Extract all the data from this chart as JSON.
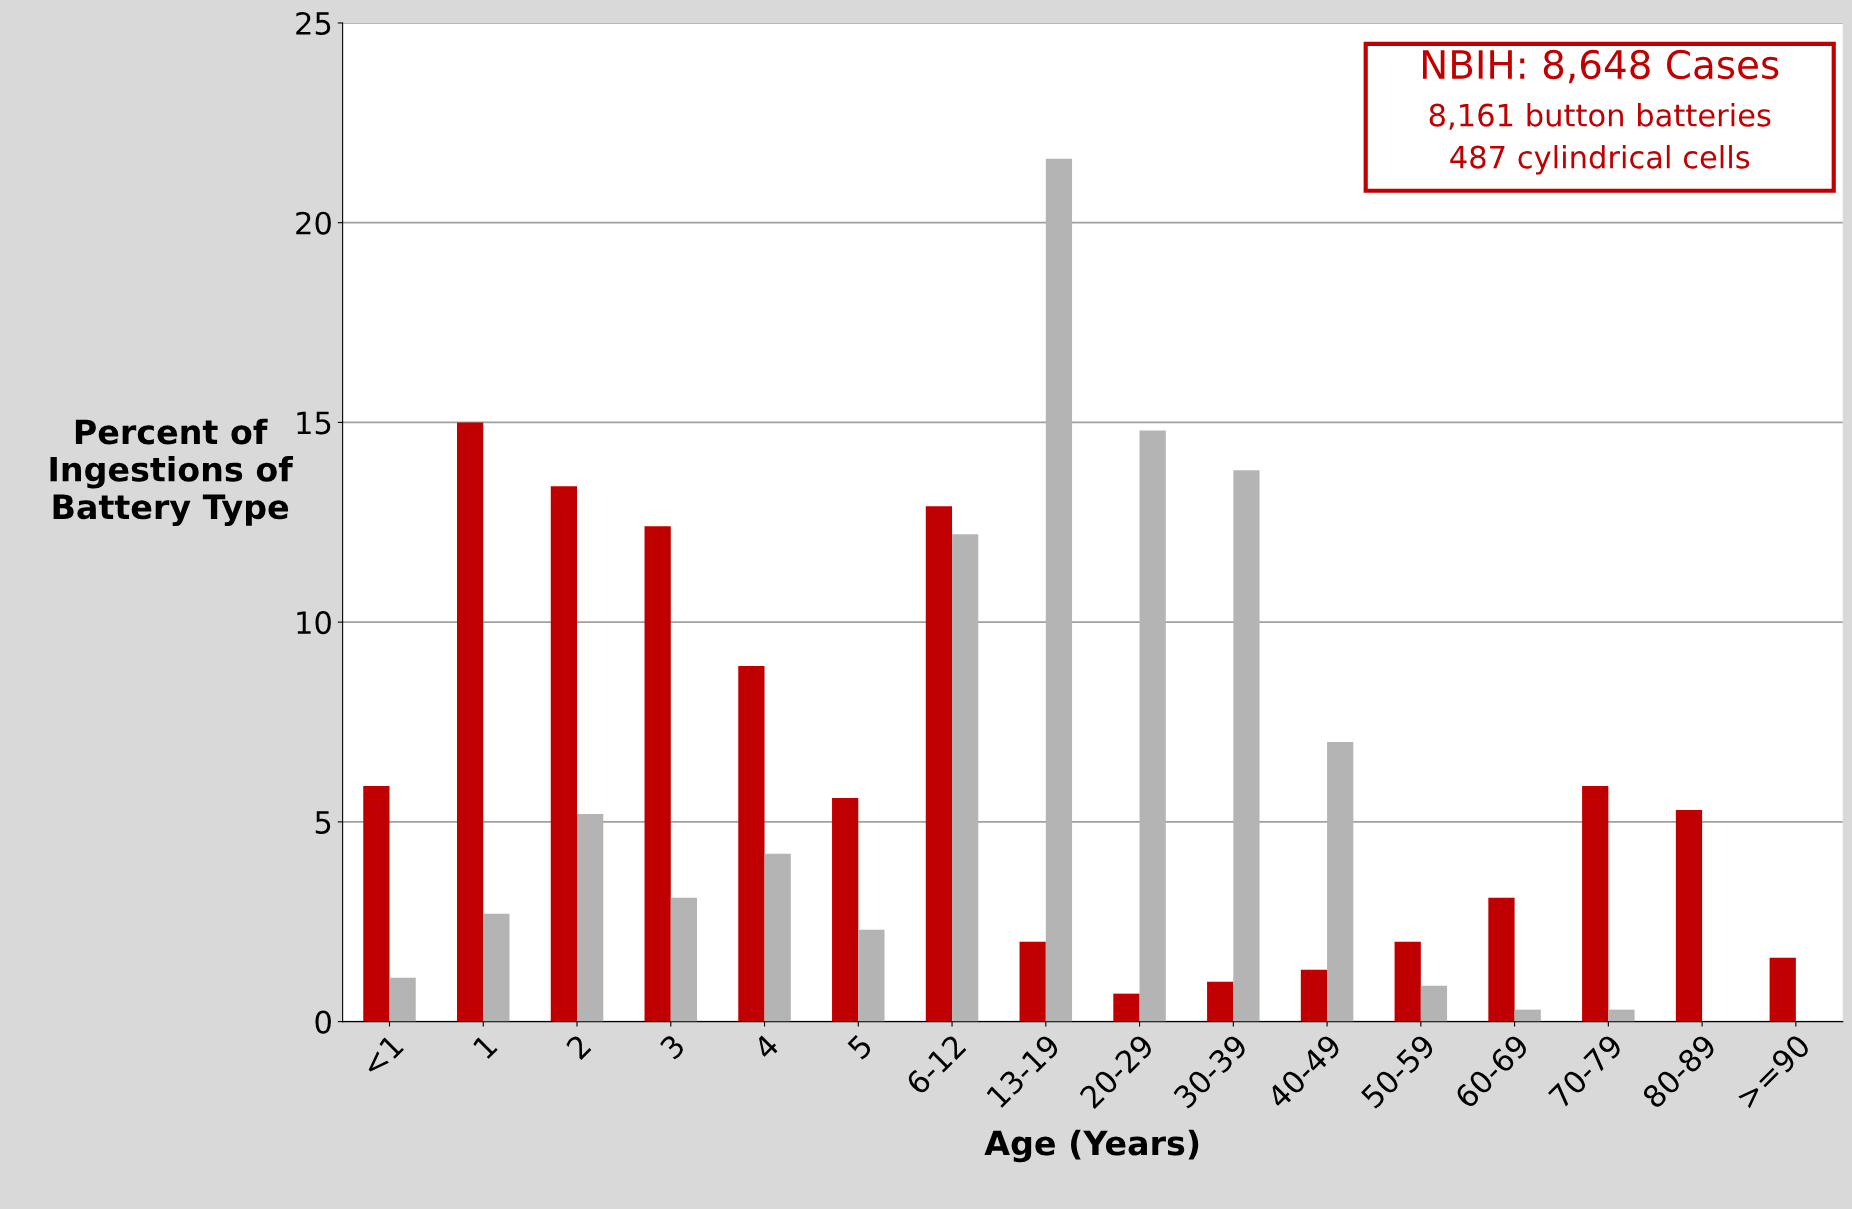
{
  "chart_data": {
    "type": "bar",
    "xlabel": "Age (Years)",
    "ylabel": "Percent of\nIngestions of\nBattery Type",
    "categories": [
      "<1",
      "1",
      "2",
      "3",
      "4",
      "5",
      "6-12",
      "13-19",
      "20-29",
      "30-39",
      "40-49",
      "50-59",
      "60-69",
      "70-79",
      "80-89",
      ">=90"
    ],
    "series": [
      {
        "color": "#c00000",
        "values": [
          5.9,
          15.0,
          13.4,
          12.4,
          8.9,
          5.6,
          12.9,
          2.0,
          0.7,
          1.0,
          1.3,
          2.0,
          3.1,
          5.9,
          5.3,
          1.6
        ]
      },
      {
        "color": "#b4b4b4",
        "values": [
          1.1,
          2.7,
          5.2,
          3.1,
          4.2,
          2.3,
          12.2,
          21.6,
          14.8,
          13.8,
          7.0,
          0.9,
          0.3,
          0.3,
          0,
          0
        ]
      }
    ],
    "ylim": [
      0,
      25
    ],
    "yticks": [
      0,
      5,
      10,
      15,
      20,
      25
    ],
    "grid": "y",
    "legend": false,
    "annotations": [
      "NBIH: 8,648 Cases",
      "8,161 button batteries",
      "487 cylindrical cells"
    ]
  }
}
